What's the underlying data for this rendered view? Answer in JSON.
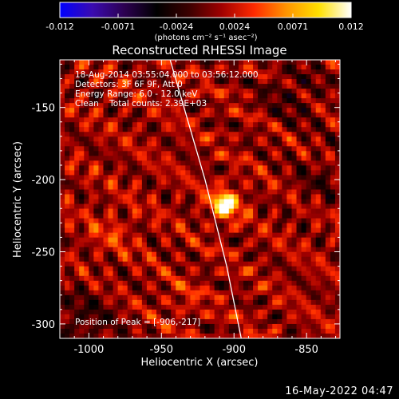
{
  "colorbar": {
    "ticks": [
      "-0.012",
      "-0.0071",
      "-0.0024",
      "0.0024",
      "0.0071",
      "0.012"
    ],
    "units": "(photons cm⁻² s⁻¹ asec⁻²)",
    "colors": [
      "#0000ff",
      "#3a0bb0",
      "#2c0050",
      "#000000",
      "#3c0000",
      "#a00000",
      "#ff2a00",
      "#ff9400",
      "#ffe000",
      "#ffffff"
    ]
  },
  "header": {
    "title": "Reconstructed RHESSI Image"
  },
  "annotations": {
    "time_range": "18-Aug-2014 03:55:04.000 to 03:56:12.000",
    "detectors": "Detectors: 3F 6F 9F, Att 0",
    "energy": "Energy Range: 6.0 - 12.0 keV",
    "clean": "Clean    Total counts: 2.39E+03",
    "peak": "Position of Peak = [-906,-217]"
  },
  "footer": {
    "date_stamp": "16-May-2022 04:47"
  },
  "chart_data": {
    "type": "heatmap",
    "title": "Reconstructed RHESSI Image",
    "xlabel": "Heliocentric X (arcsec)",
    "ylabel": "Heliocentric Y (arcsec)",
    "xlim": [
      -1020,
      -827
    ],
    "ylim": [
      -310,
      -117
    ],
    "xticks": [
      -1000,
      -950,
      -900,
      -850
    ],
    "yticks": [
      -150,
      -200,
      -250,
      -300
    ],
    "xtick_labels": [
      "-1000",
      "-950",
      "-900",
      "-850"
    ],
    "ytick_labels": [
      "-150",
      "-200",
      "-250",
      "-300"
    ],
    "colorbar_range": [
      -0.012,
      0.012
    ],
    "peak": {
      "x": -906,
      "y": -217
    },
    "limb_line": [
      {
        "x": -944,
        "y": -117
      },
      {
        "x": -920,
        "y": -200
      },
      {
        "x": -905,
        "y": -260
      },
      {
        "x": -895,
        "y": -310
      }
    ]
  }
}
